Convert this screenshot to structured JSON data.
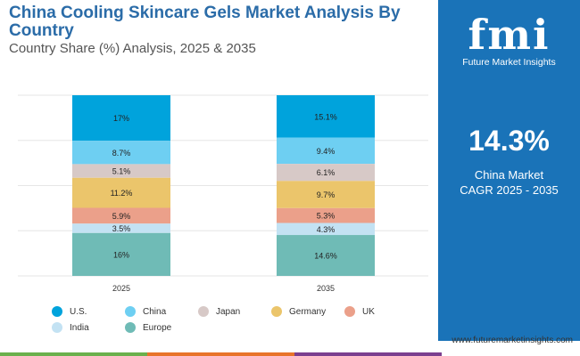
{
  "title": "China Cooling Skincare Gels Market Analysis By Country",
  "subtitle": "Country Share (%) Analysis, 2025 & 2035",
  "panel": {
    "brand": "fmi",
    "brand_name": "Future Market Insights",
    "cagr_value": "14.3%",
    "cagr_label_1": "China Market",
    "cagr_label_2": "CAGR 2025 - 2035",
    "url": "www.futuremarketinsights.com"
  },
  "chart_data": {
    "type": "bar",
    "stacked": true,
    "grid": true,
    "legend_position": "bottom",
    "categories": [
      "2025",
      "2035"
    ],
    "series": [
      {
        "name": "U.S.",
        "color": "#00a3dc",
        "values": [
          17,
          15.1
        ]
      },
      {
        "name": "China",
        "color": "#6ecff2",
        "values": [
          8.7,
          9.4
        ]
      },
      {
        "name": "Japan",
        "color": "#d7c9c7",
        "values": [
          5.1,
          6.1
        ]
      },
      {
        "name": "Germany",
        "color": "#ebc56b",
        "values": [
          11.2,
          9.7
        ]
      },
      {
        "name": "UK",
        "color": "#eba08a",
        "values": [
          5.9,
          5.3
        ]
      },
      {
        "name": "India",
        "color": "#c3e2f3",
        "values": [
          3.5,
          4.3
        ]
      },
      {
        "name": "Europe",
        "color": "#6fbbb6",
        "values": [
          16,
          14.6
        ]
      }
    ]
  }
}
